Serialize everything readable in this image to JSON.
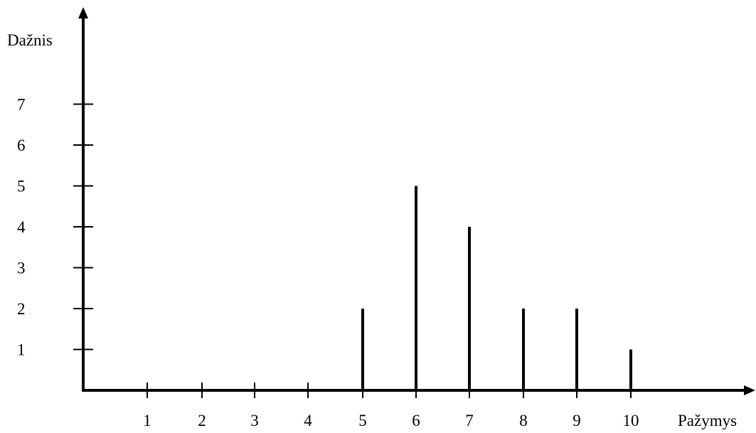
{
  "chart_data": {
    "type": "bar",
    "ylabel": "Dažnis",
    "xlabel": "Pažymys",
    "x_ticks": [
      "1",
      "2",
      "3",
      "4",
      "5",
      "6",
      "7",
      "8",
      "9",
      "10"
    ],
    "y_ticks": [
      "1",
      "2",
      "3",
      "4",
      "5",
      "6",
      "7"
    ],
    "categories": [
      5,
      6,
      7,
      8,
      9,
      10
    ],
    "values": [
      2,
      5,
      4,
      2,
      2,
      1
    ],
    "ylim": [
      0,
      7
    ],
    "xlim": [
      1,
      10
    ],
    "grid": false
  }
}
